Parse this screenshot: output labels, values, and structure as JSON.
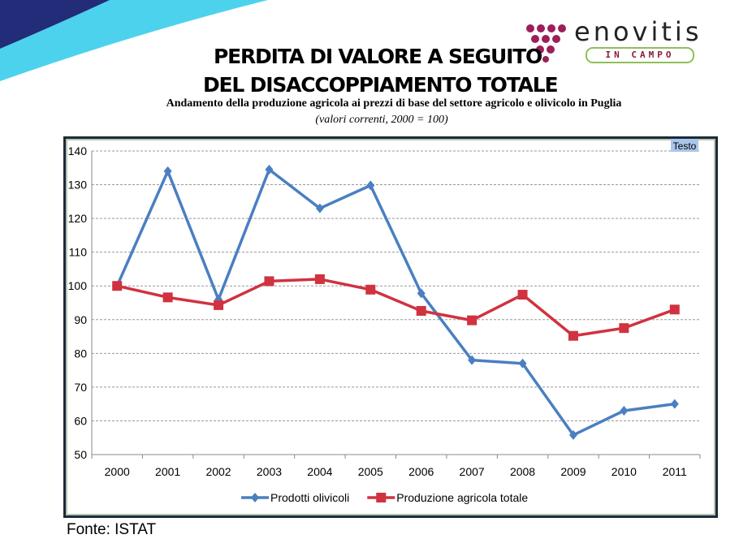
{
  "header": {
    "title_line1": "PERDITA DI VALORE A SEGUITO",
    "title_line2": "DEL DISACCOPPIAMENTO TOTALE",
    "logo": {
      "name": "enovitis",
      "tagline": "IN CAMPO"
    }
  },
  "source": "Fonte: ISTAT",
  "chart_data": {
    "type": "line",
    "title": "Andamento della produzione agricola ai prezzi di base del settore agricolo e olivicolo in Puglia",
    "subtitle": "(valori correnti, 2000 = 100)",
    "annotation": "Testo",
    "categories": [
      "2000",
      "2001",
      "2002",
      "2003",
      "2004",
      "2005",
      "2006",
      "2007",
      "2008",
      "2009",
      "2010",
      "2011"
    ],
    "y_ticks": [
      "50",
      "60",
      "70",
      "80",
      "90",
      "100",
      "110",
      "120",
      "130",
      "140"
    ],
    "ylim": [
      50,
      140
    ],
    "grid": true,
    "legend_position": "bottom",
    "series": [
      {
        "name": "Prodotti olivicoli",
        "color": "#4a7fc1",
        "marker": "diamond",
        "values": [
          100,
          134,
          96,
          134.5,
          123,
          129.8,
          97.8,
          78,
          77,
          55.8,
          63,
          65
        ]
      },
      {
        "name": "Produzione agricola totale",
        "color": "#d0323f",
        "marker": "square",
        "values": [
          100,
          96.6,
          94.3,
          101.4,
          102,
          98.9,
          92.6,
          89.8,
          97.4,
          85.2,
          87.5,
          93
        ]
      }
    ]
  }
}
